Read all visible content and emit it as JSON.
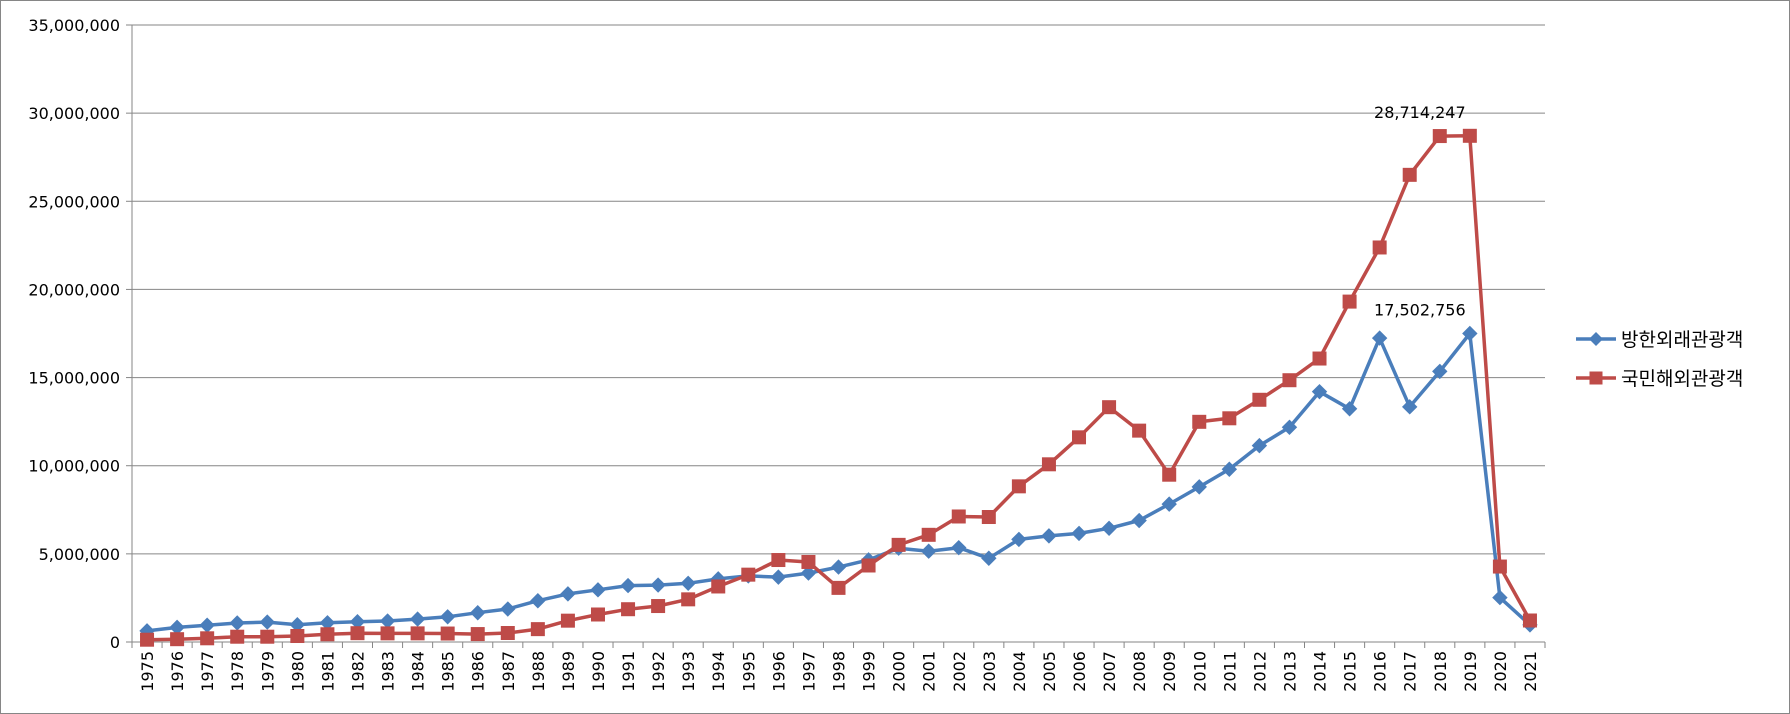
{
  "chart_data": {
    "type": "line",
    "categories": [
      "1975",
      "1976",
      "1977",
      "1978",
      "1979",
      "1980",
      "1981",
      "1982",
      "1983",
      "1984",
      "1985",
      "1986",
      "1987",
      "1988",
      "1989",
      "1990",
      "1991",
      "1992",
      "1993",
      "1994",
      "1995",
      "1996",
      "1997",
      "1998",
      "1999",
      "2000",
      "2001",
      "2002",
      "2003",
      "2004",
      "2005",
      "2006",
      "2007",
      "2008",
      "2009",
      "2010",
      "2011",
      "2012",
      "2013",
      "2014",
      "2015",
      "2016",
      "2017",
      "2018",
      "2019",
      "2020",
      "2021"
    ],
    "y_ticks": [
      "0",
      "5,000,000",
      "10,000,000",
      "15,000,000",
      "20,000,000",
      "25,000,000",
      "30,000,000",
      "35,000,000"
    ],
    "ylim": [
      0,
      35000000
    ],
    "grid": "horizontal",
    "legend_position": "right",
    "series": [
      {
        "name": "방한외래관광객",
        "color": "#4a7ebb",
        "marker": "diamond",
        "values": [
          630000,
          830000,
          950000,
          1080000,
          1130000,
          980000,
          1090000,
          1150000,
          1190000,
          1300000,
          1430000,
          1660000,
          1870000,
          2340000,
          2730000,
          2960000,
          3200000,
          3230000,
          3330000,
          3580000,
          3750000,
          3680000,
          3910000,
          4250000,
          4660000,
          5320000,
          5150000,
          5350000,
          4750000,
          5820000,
          6020000,
          6160000,
          6450000,
          6890000,
          7820000,
          8800000,
          9800000,
          11140000,
          12180000,
          14200000,
          13230000,
          17240000,
          13340000,
          15350000,
          17502756,
          2520000,
          970000
        ]
      },
      {
        "name": "국민해외관광객",
        "color": "#be4b48",
        "marker": "square",
        "values": [
          130000,
          160000,
          210000,
          300000,
          300000,
          340000,
          440000,
          500000,
          490000,
          490000,
          480000,
          450000,
          510000,
          730000,
          1210000,
          1560000,
          1860000,
          2040000,
          2420000,
          3150000,
          3820000,
          4650000,
          4540000,
          3070000,
          4340000,
          5510000,
          6080000,
          7120000,
          7090000,
          8830000,
          10080000,
          11610000,
          13320000,
          11990000,
          9490000,
          12490000,
          12690000,
          13740000,
          14850000,
          16080000,
          19310000,
          22380000,
          26500000,
          28700000,
          28714247,
          4280000,
          1220000
        ]
      }
    ],
    "data_labels": [
      {
        "series": 0,
        "index": 44,
        "text": "17,502,756"
      },
      {
        "series": 1,
        "index": 44,
        "text": "28,714,247"
      }
    ]
  }
}
